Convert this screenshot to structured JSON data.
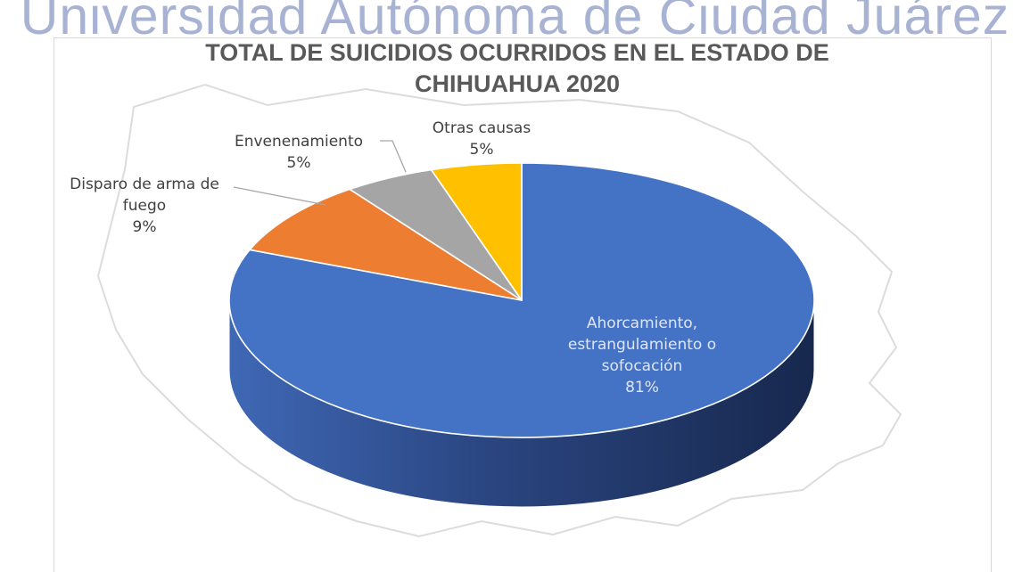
{
  "watermark": "Universidad Autónoma de Ciudad Juárez",
  "chart_data": {
    "type": "pie",
    "title": "TOTAL DE SUICIDIOS OCURRIDOS EN EL ESTADO DE CHIHUAHUA 2020",
    "slices": [
      {
        "name": "Ahorcamiento, estrangulamiento o sofocación",
        "label": "Ahorcamiento, estrangulamiento o sofocación",
        "percent_label": "81%",
        "value": 81,
        "color": "#4472c4",
        "side_color": "#2f4d8a"
      },
      {
        "name": "Disparo de arma de fuego",
        "label": "Disparo de arma de fuego",
        "percent_label": "9%",
        "value": 9,
        "color": "#ed7d31",
        "side_color": "#b35c22"
      },
      {
        "name": "Envenenamiento",
        "label": "Envenenamiento",
        "percent_label": "5%",
        "value": 5,
        "color": "#a5a5a5",
        "side_color": "#7a7a7a"
      },
      {
        "name": "Otras causas",
        "label": "Otras causas",
        "percent_label": "5%",
        "value": 5,
        "color": "#ffc000",
        "side_color": "#c79500"
      }
    ],
    "start": "12 o'clock",
    "direction": "clockwise",
    "three_d": true,
    "legend": "none"
  }
}
